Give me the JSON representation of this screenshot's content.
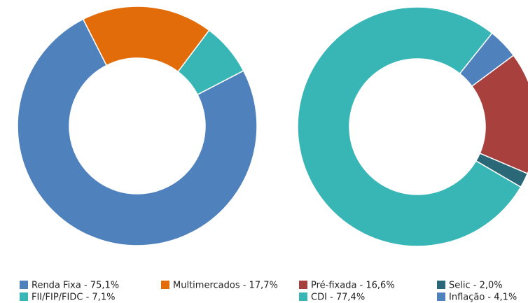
{
  "chart_data": [
    {
      "type": "donut",
      "categories": [
        "Renda Fixa - 75,1%",
        "Multimercados - 17,7%",
        "FII/FIP/FIDC - 7,1%"
      ],
      "values": [
        75.1,
        17.7,
        7.1
      ],
      "colors": [
        "#4f81bd",
        "#e36c0a",
        "#38b6b6"
      ]
    },
    {
      "type": "donut",
      "categories": [
        "Pré-fixada - 16,6%",
        "Selic - 2,0%",
        "CDI - 77,4%",
        "Inflação - 4,1%"
      ],
      "values": [
        16.6,
        2.0,
        77.4,
        4.1
      ],
      "colors": [
        "#a8403e",
        "#2a6878",
        "#38b6b6",
        "#4f81bd"
      ]
    }
  ]
}
